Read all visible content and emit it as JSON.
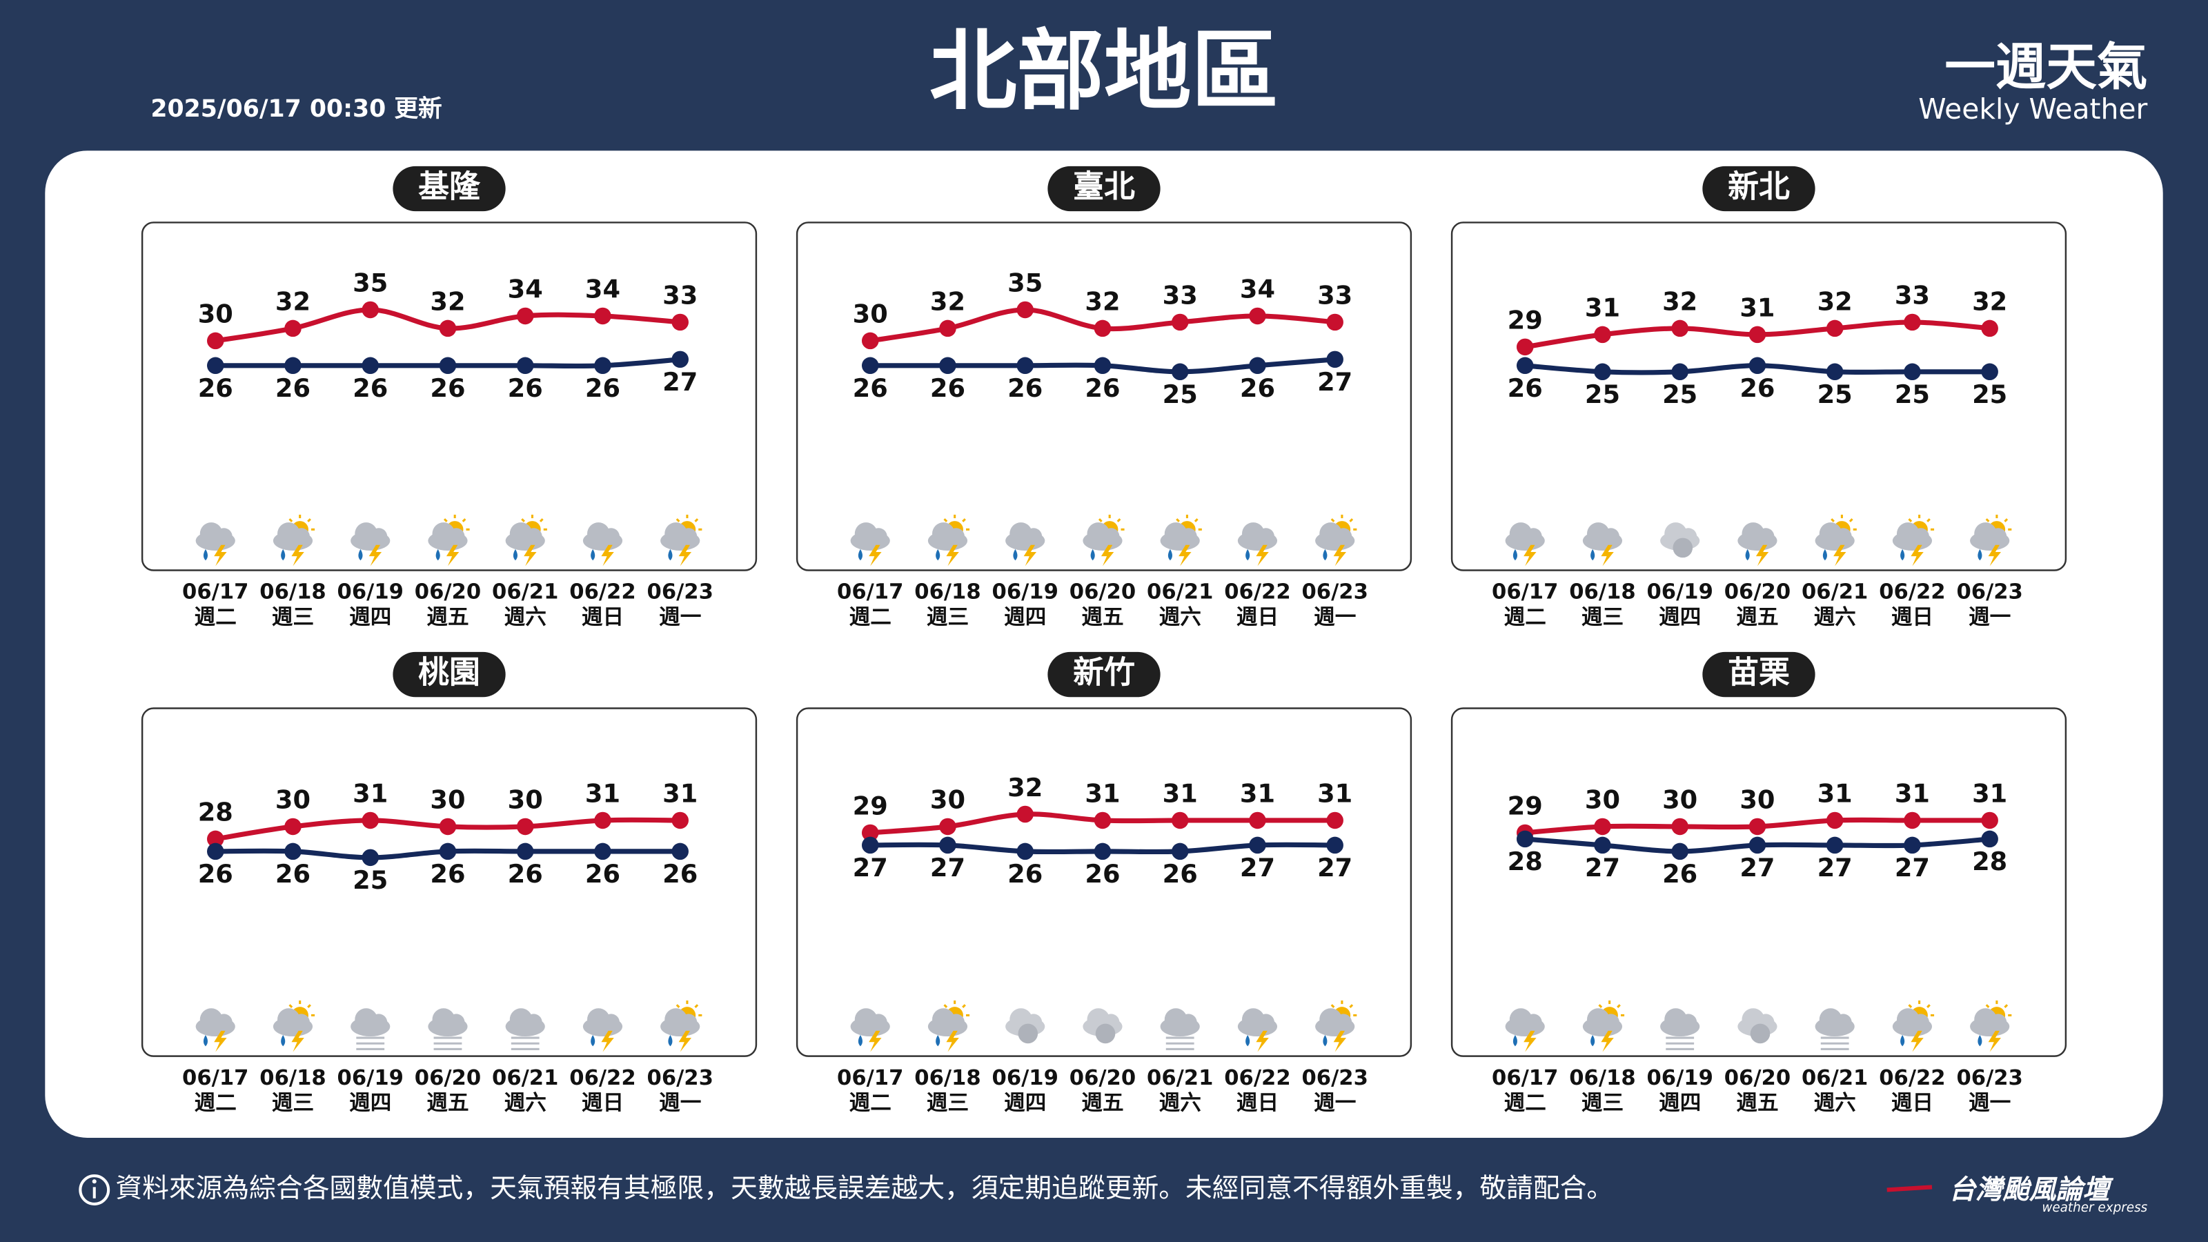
{
  "header": {
    "title": "北部地區",
    "updated": "2025/06/17 00:30 更新",
    "brand_title": "一週天氣",
    "brand_subtitle": "Weekly Weather"
  },
  "footer": {
    "note": "資料來源為綜合各國數值模式，天氣預報有其極限，天數越長誤差越大，須定期追蹤更新。未經同意不得額外重製，敬請配合。",
    "logo": "台灣颱風論壇",
    "logo_subtitle": "weather express"
  },
  "chart_data": [
    {
      "type": "line",
      "title": "基隆",
      "categories": [
        "06/17",
        "06/18",
        "06/19",
        "06/20",
        "06/21",
        "06/22",
        "06/23"
      ],
      "weekdays": [
        "週二",
        "週三",
        "週四",
        "週五",
        "週六",
        "週日",
        "週一"
      ],
      "series": [
        {
          "color": "#c8102e",
          "values": [
            30,
            32,
            35,
            32,
            34,
            34,
            33
          ]
        },
        {
          "color": "#14285a",
          "values": [
            26,
            26,
            26,
            26,
            26,
            26,
            27
          ]
        }
      ],
      "ylim": [
        0,
        50
      ]
    },
    {
      "type": "line",
      "title": "臺北",
      "categories": [
        "06/17",
        "06/18",
        "06/19",
        "06/20",
        "06/21",
        "06/22",
        "06/23"
      ],
      "weekdays": [
        "週二",
        "週三",
        "週四",
        "週五",
        "週六",
        "週日",
        "週一"
      ],
      "series": [
        {
          "color": "#c8102e",
          "values": [
            30,
            32,
            35,
            32,
            33,
            34,
            33
          ]
        },
        {
          "color": "#14285a",
          "values": [
            26,
            26,
            26,
            26,
            25,
            26,
            27
          ]
        }
      ],
      "ylim": [
        0,
        50
      ]
    },
    {
      "type": "line",
      "title": "新北",
      "categories": [
        "06/17",
        "06/18",
        "06/19",
        "06/20",
        "06/21",
        "06/22",
        "06/23"
      ],
      "weekdays": [
        "週二",
        "週三",
        "週四",
        "週五",
        "週六",
        "週日",
        "週一"
      ],
      "series": [
        {
          "color": "#c8102e",
          "values": [
            29,
            31,
            32,
            31,
            32,
            33,
            32
          ]
        },
        {
          "color": "#14285a",
          "values": [
            26,
            25,
            25,
            26,
            25,
            25,
            25
          ]
        }
      ],
      "ylim": [
        0,
        50
      ]
    },
    {
      "type": "line",
      "title": "桃園",
      "categories": [
        "06/17",
        "06/18",
        "06/19",
        "06/20",
        "06/21",
        "06/22",
        "06/23"
      ],
      "weekdays": [
        "週二",
        "週三",
        "週四",
        "週五",
        "週六",
        "週日",
        "週一"
      ],
      "series": [
        {
          "color": "#c8102e",
          "values": [
            28,
            30,
            31,
            30,
            30,
            31,
            31
          ]
        },
        {
          "color": "#14285a",
          "values": [
            26,
            26,
            25,
            26,
            26,
            26,
            26
          ]
        }
      ],
      "ylim": [
        0,
        50
      ]
    },
    {
      "type": "line",
      "title": "新竹",
      "categories": [
        "06/17",
        "06/18",
        "06/19",
        "06/20",
        "06/21",
        "06/22",
        "06/23"
      ],
      "weekdays": [
        "週二",
        "週三",
        "週四",
        "週五",
        "週六",
        "週日",
        "週一"
      ],
      "series": [
        {
          "color": "#c8102e",
          "values": [
            29,
            30,
            32,
            31,
            31,
            31,
            31
          ]
        },
        {
          "color": "#14285a",
          "values": [
            27,
            27,
            26,
            26,
            26,
            27,
            27
          ]
        }
      ],
      "ylim": [
        0,
        50
      ]
    },
    {
      "type": "line",
      "title": "苗栗",
      "categories": [
        "06/17",
        "06/18",
        "06/19",
        "06/20",
        "06/21",
        "06/22",
        "06/23"
      ],
      "weekdays": [
        "週二",
        "週三",
        "週四",
        "週五",
        "週六",
        "週日",
        "週一"
      ],
      "series": [
        {
          "color": "#c8102e",
          "values": [
            29,
            30,
            30,
            30,
            31,
            31,
            31
          ]
        },
        {
          "color": "#14285a",
          "values": [
            28,
            27,
            26,
            27,
            27,
            27,
            28
          ]
        }
      ],
      "ylim": [
        0,
        50
      ]
    }
  ]
}
